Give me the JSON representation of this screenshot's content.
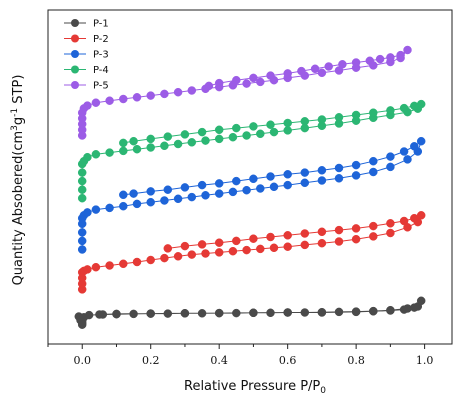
{
  "chart_data": {
    "type": "scatter",
    "xlabel": "Relative Pressure P/P",
    "xlabel_subscript": "0",
    "ylabel": "Quantity Absobered(cm",
    "ylabel_sup1": "3",
    "ylabel_mid": "g",
    "ylabel_sup2": "-1",
    "ylabel_end": " STP)",
    "xlim": [
      -0.1,
      1.08
    ],
    "ylim": [
      0,
      100
    ],
    "x_ticks": [
      0.0,
      0.2,
      0.4,
      0.6,
      0.8,
      1.0
    ],
    "x_tick_labels": [
      "0.0",
      "0.2",
      "0.4",
      "0.6",
      "0.8",
      "1.0"
    ],
    "y_ticks_labeled": false,
    "grid": false,
    "legend_position": "top-left",
    "markers_connected": true,
    "series": [
      {
        "name": "P-1",
        "color": "#4a4a4a",
        "points": [
          [
            -0.01,
            6.5
          ],
          [
            -0.005,
            5.2
          ],
          [
            0.0,
            3.6
          ],
          [
            0.0,
            4.2
          ],
          [
            0.0,
            5.0
          ],
          [
            0.005,
            6.2
          ],
          [
            0.02,
            7.0
          ],
          [
            0.06,
            7.2
          ],
          [
            0.1,
            7.3
          ],
          [
            0.15,
            7.4
          ],
          [
            0.2,
            7.5
          ],
          [
            0.25,
            7.5
          ],
          [
            0.3,
            7.6
          ],
          [
            0.35,
            7.6
          ],
          [
            0.4,
            7.7
          ],
          [
            0.45,
            7.7
          ],
          [
            0.5,
            7.8
          ],
          [
            0.55,
            7.8
          ],
          [
            0.6,
            7.9
          ],
          [
            0.65,
            7.9
          ],
          [
            0.7,
            8.0
          ],
          [
            0.75,
            8.1
          ],
          [
            0.8,
            8.2
          ],
          [
            0.85,
            8.4
          ],
          [
            0.9,
            8.7
          ],
          [
            0.95,
            9.3
          ],
          [
            0.98,
            10.0
          ],
          [
            0.99,
            12.0
          ],
          [
            0.97,
            9.6
          ],
          [
            0.94,
            8.9
          ],
          [
            0.9,
            8.6
          ],
          [
            0.85,
            8.3
          ],
          [
            0.8,
            8.1
          ],
          [
            0.7,
            7.9
          ],
          [
            0.6,
            7.9
          ],
          [
            0.5,
            7.8
          ],
          [
            0.4,
            7.7
          ],
          [
            0.3,
            7.6
          ],
          [
            0.2,
            7.5
          ],
          [
            0.1,
            7.4
          ],
          [
            0.05,
            7.2
          ]
        ]
      },
      {
        "name": "P-2",
        "color": "#e53935",
        "points": [
          [
            0.0,
            16.0
          ],
          [
            0.0,
            18.0
          ],
          [
            0.0,
            20.0
          ],
          [
            0.0,
            22.0
          ],
          [
            0.005,
            22.5
          ],
          [
            0.015,
            23.0
          ],
          [
            0.04,
            23.8
          ],
          [
            0.08,
            24.4
          ],
          [
            0.12,
            25.0
          ],
          [
            0.16,
            25.6
          ],
          [
            0.2,
            26.3
          ],
          [
            0.24,
            27.0
          ],
          [
            0.28,
            27.6
          ],
          [
            0.32,
            28.2
          ],
          [
            0.36,
            28.6
          ],
          [
            0.4,
            29.0
          ],
          [
            0.44,
            29.4
          ],
          [
            0.48,
            29.8
          ],
          [
            0.52,
            30.2
          ],
          [
            0.56,
            30.6
          ],
          [
            0.6,
            31.0
          ],
          [
            0.65,
            31.6
          ],
          [
            0.7,
            32.2
          ],
          [
            0.75,
            32.8
          ],
          [
            0.8,
            33.6
          ],
          [
            0.85,
            34.6
          ],
          [
            0.9,
            35.8
          ],
          [
            0.95,
            37.8
          ],
          [
            0.98,
            39.6
          ],
          [
            0.99,
            42.0
          ],
          [
            0.97,
            41.0
          ],
          [
            0.94,
            40.0
          ],
          [
            0.9,
            39.2
          ],
          [
            0.85,
            38.2
          ],
          [
            0.8,
            37.4
          ],
          [
            0.75,
            36.8
          ],
          [
            0.7,
            36.2
          ],
          [
            0.65,
            35.6
          ],
          [
            0.6,
            35.0
          ],
          [
            0.55,
            34.4
          ],
          [
            0.5,
            33.8
          ],
          [
            0.45,
            33.0
          ],
          [
            0.4,
            32.4
          ],
          [
            0.35,
            31.8
          ],
          [
            0.3,
            31.2
          ],
          [
            0.25,
            30.4
          ]
        ]
      },
      {
        "name": "P-3",
        "color": "#1e64d8",
        "points": [
          [
            0.0,
            30.0
          ],
          [
            0.0,
            33.0
          ],
          [
            0.0,
            36.0
          ],
          [
            0.0,
            39.0
          ],
          [
            0.0,
            41.0
          ],
          [
            0.005,
            42.0
          ],
          [
            0.015,
            43.0
          ],
          [
            0.04,
            44.0
          ],
          [
            0.08,
            44.6
          ],
          [
            0.12,
            45.2
          ],
          [
            0.16,
            46.0
          ],
          [
            0.2,
            46.6
          ],
          [
            0.24,
            47.2
          ],
          [
            0.28,
            47.8
          ],
          [
            0.32,
            48.4
          ],
          [
            0.36,
            49.0
          ],
          [
            0.4,
            49.6
          ],
          [
            0.44,
            50.2
          ],
          [
            0.48,
            50.8
          ],
          [
            0.52,
            51.4
          ],
          [
            0.56,
            52.0
          ],
          [
            0.6,
            52.6
          ],
          [
            0.65,
            53.4
          ],
          [
            0.7,
            54.2
          ],
          [
            0.75,
            55.0
          ],
          [
            0.8,
            56.0
          ],
          [
            0.85,
            57.2
          ],
          [
            0.9,
            59.0
          ],
          [
            0.95,
            61.6
          ],
          [
            0.98,
            64.4
          ],
          [
            0.99,
            68.0
          ],
          [
            0.97,
            66.2
          ],
          [
            0.94,
            64.4
          ],
          [
            0.9,
            62.6
          ],
          [
            0.85,
            61.0
          ],
          [
            0.8,
            59.6
          ],
          [
            0.75,
            58.6
          ],
          [
            0.7,
            57.8
          ],
          [
            0.65,
            57.0
          ],
          [
            0.6,
            56.4
          ],
          [
            0.55,
            55.6
          ],
          [
            0.5,
            54.8
          ],
          [
            0.45,
            54.0
          ],
          [
            0.4,
            53.2
          ],
          [
            0.35,
            52.6
          ],
          [
            0.3,
            51.8
          ],
          [
            0.25,
            51.0
          ],
          [
            0.2,
            50.4
          ],
          [
            0.15,
            49.6
          ],
          [
            0.12,
            49.2
          ]
        ]
      },
      {
        "name": "P-4",
        "color": "#2bb673",
        "points": [
          [
            0.0,
            48.0
          ],
          [
            0.0,
            51.0
          ],
          [
            0.0,
            54.0
          ],
          [
            0.0,
            57.0
          ],
          [
            0.0,
            60.0
          ],
          [
            0.005,
            61.0
          ],
          [
            0.015,
            62.4
          ],
          [
            0.04,
            63.4
          ],
          [
            0.08,
            64.0
          ],
          [
            0.12,
            64.6
          ],
          [
            0.16,
            65.2
          ],
          [
            0.2,
            65.8
          ],
          [
            0.24,
            66.4
          ],
          [
            0.28,
            67.0
          ],
          [
            0.32,
            67.6
          ],
          [
            0.36,
            68.2
          ],
          [
            0.4,
            68.8
          ],
          [
            0.44,
            69.4
          ],
          [
            0.48,
            70.0
          ],
          [
            0.52,
            70.6
          ],
          [
            0.56,
            71.2
          ],
          [
            0.6,
            71.8
          ],
          [
            0.65,
            72.6
          ],
          [
            0.7,
            73.4
          ],
          [
            0.75,
            74.2
          ],
          [
            0.8,
            75.2
          ],
          [
            0.85,
            76.2
          ],
          [
            0.9,
            77.2
          ],
          [
            0.95,
            78.2
          ],
          [
            0.98,
            79.4
          ],
          [
            0.99,
            81.0
          ],
          [
            0.97,
            80.4
          ],
          [
            0.94,
            79.6
          ],
          [
            0.9,
            78.8
          ],
          [
            0.85,
            78.0
          ],
          [
            0.8,
            77.2
          ],
          [
            0.75,
            76.4
          ],
          [
            0.7,
            75.6
          ],
          [
            0.65,
            75.0
          ],
          [
            0.6,
            74.4
          ],
          [
            0.55,
            73.8
          ],
          [
            0.5,
            73.2
          ],
          [
            0.45,
            72.6
          ],
          [
            0.4,
            72.0
          ],
          [
            0.35,
            71.2
          ],
          [
            0.3,
            70.4
          ],
          [
            0.25,
            69.6
          ],
          [
            0.2,
            68.8
          ],
          [
            0.15,
            68.0
          ],
          [
            0.12,
            67.4
          ]
        ]
      },
      {
        "name": "P-5",
        "color": "#9c5ce6",
        "points": [
          [
            0.0,
            70.0
          ],
          [
            0.0,
            72.0
          ],
          [
            0.0,
            74.0
          ],
          [
            0.0,
            76.0
          ],
          [
            0.0,
            78.0
          ],
          [
            0.005,
            79.5
          ],
          [
            0.015,
            80.5
          ],
          [
            0.04,
            81.5
          ],
          [
            0.08,
            82.2
          ],
          [
            0.12,
            82.8
          ],
          [
            0.16,
            83.4
          ],
          [
            0.2,
            84.0
          ],
          [
            0.24,
            84.6
          ],
          [
            0.28,
            85.2
          ],
          [
            0.32,
            85.8
          ],
          [
            0.36,
            86.4
          ],
          [
            0.4,
            87.0
          ],
          [
            0.44,
            87.6
          ],
          [
            0.48,
            88.2
          ],
          [
            0.52,
            88.8
          ],
          [
            0.56,
            89.4
          ],
          [
            0.6,
            90.2
          ],
          [
            0.65,
            91.0
          ],
          [
            0.7,
            92.0
          ],
          [
            0.75,
            92.8
          ],
          [
            0.8,
            93.8
          ],
          [
            0.85,
            94.6
          ],
          [
            0.9,
            95.8
          ],
          [
            0.93,
            97.2
          ],
          [
            0.95,
            100.0
          ],
          [
            0.93,
            98.2
          ],
          [
            0.9,
            97.4
          ],
          [
            0.87,
            96.8
          ],
          [
            0.84,
            96.2
          ],
          [
            0.8,
            95.6
          ],
          [
            0.76,
            95.0
          ],
          [
            0.72,
            94.2
          ],
          [
            0.68,
            93.4
          ],
          [
            0.64,
            92.6
          ],
          [
            0.6,
            91.8
          ],
          [
            0.55,
            91.0
          ],
          [
            0.5,
            90.2
          ],
          [
            0.45,
            89.4
          ],
          [
            0.4,
            88.4
          ],
          [
            0.37,
            87.4
          ]
        ]
      }
    ]
  }
}
